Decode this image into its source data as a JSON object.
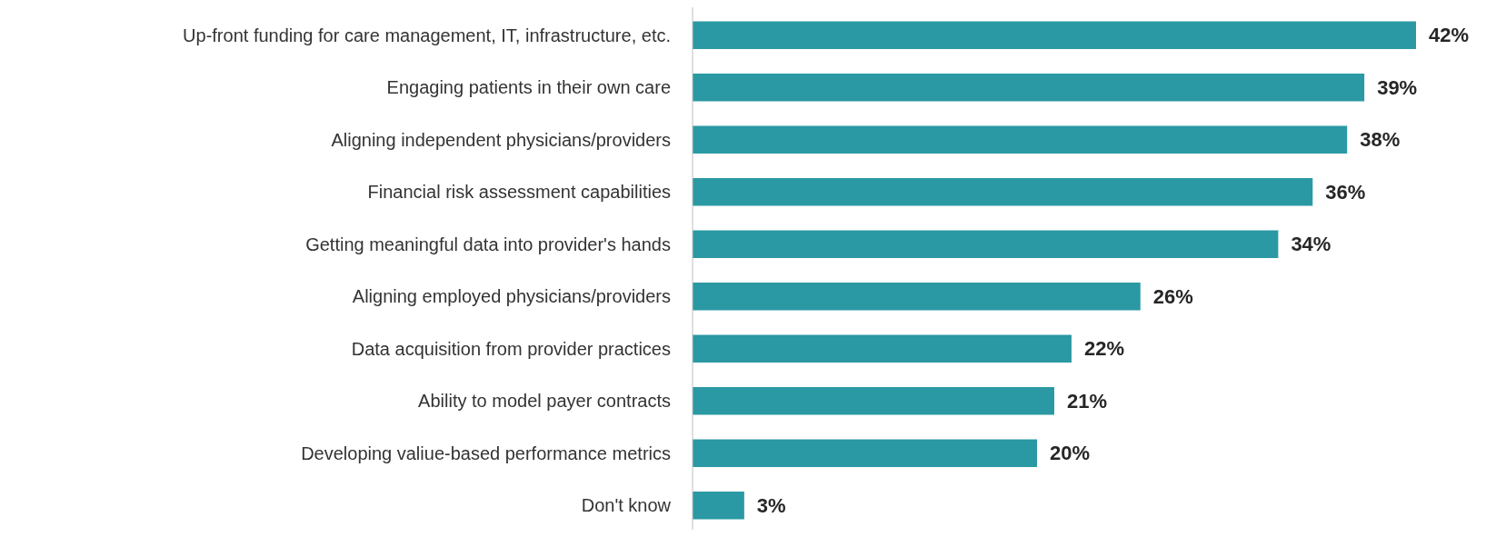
{
  "chart_data": {
    "type": "bar",
    "orientation": "horizontal",
    "relative": false,
    "categories": [
      "Up-front funding for care management, IT, infrastructure, etc.",
      "Engaging patients in their own care",
      "Aligning independent physicians/providers",
      "Financial risk assessment capabilities",
      "Getting meaningful data into provider's hands",
      "Aligning employed physicians/providers",
      "Data acquisition from provider practices",
      "Ability to model payer contracts",
      "Developing valiue-based performance metrics",
      "Don't know"
    ],
    "values": [
      42,
      39,
      38,
      36,
      34,
      26,
      22,
      21,
      20,
      3
    ],
    "value_labels": [
      "42%",
      "39%",
      "38%",
      "36%",
      "34%",
      "26%",
      "22%",
      "21%",
      "20%",
      "3%"
    ],
    "color": "#2a99a3"
  }
}
